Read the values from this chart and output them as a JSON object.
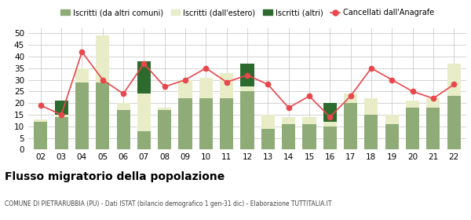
{
  "years": [
    "02",
    "03",
    "04",
    "05",
    "06",
    "07",
    "08",
    "09",
    "10",
    "11",
    "12",
    "13",
    "14",
    "15",
    "16",
    "17",
    "18",
    "19",
    "20",
    "21",
    "22"
  ],
  "iscritti_comuni": [
    12,
    14,
    29,
    29,
    17,
    8,
    17,
    22,
    22,
    22,
    25,
    9,
    11,
    11,
    10,
    20,
    15,
    11,
    18,
    18,
    23
  ],
  "iscritti_estero": [
    1,
    1,
    6,
    20,
    3,
    16,
    1,
    8,
    9,
    11,
    2,
    6,
    3,
    3,
    2,
    4,
    7,
    4,
    3,
    4,
    14
  ],
  "iscritti_altri": [
    0,
    6,
    0,
    0,
    0,
    14,
    0,
    0,
    0,
    0,
    10,
    0,
    0,
    0,
    8,
    0,
    0,
    0,
    0,
    0,
    0
  ],
  "cancellati": [
    19,
    15,
    42,
    30,
    24,
    37,
    27,
    30,
    35,
    29,
    32,
    28,
    18,
    23,
    14,
    23,
    35,
    30,
    25,
    22,
    28
  ],
  "color_comuni": "#8fac78",
  "color_estero": "#e8edc8",
  "color_altri": "#2d6a2d",
  "color_cancellati": "#e8474c",
  "title": "Flusso migratorio della popolazione",
  "subtitle": "COMUNE DI PIETRARUBBIA (PU) - Dati ISTAT (bilancio demografico 1 gen-31 dic) - Elaborazione TUTTITALIA.IT",
  "legend_labels": [
    "Iscritti (da altri comuni)",
    "Iscritti (dall'estero)",
    "Iscritti (altri)",
    "Cancellati dall'Anagrafe"
  ],
  "ylim": [
    0,
    52
  ],
  "yticks": [
    0,
    5,
    10,
    15,
    20,
    25,
    30,
    35,
    40,
    45,
    50
  ],
  "bg_color": "#ffffff",
  "grid_color": "#cccccc"
}
